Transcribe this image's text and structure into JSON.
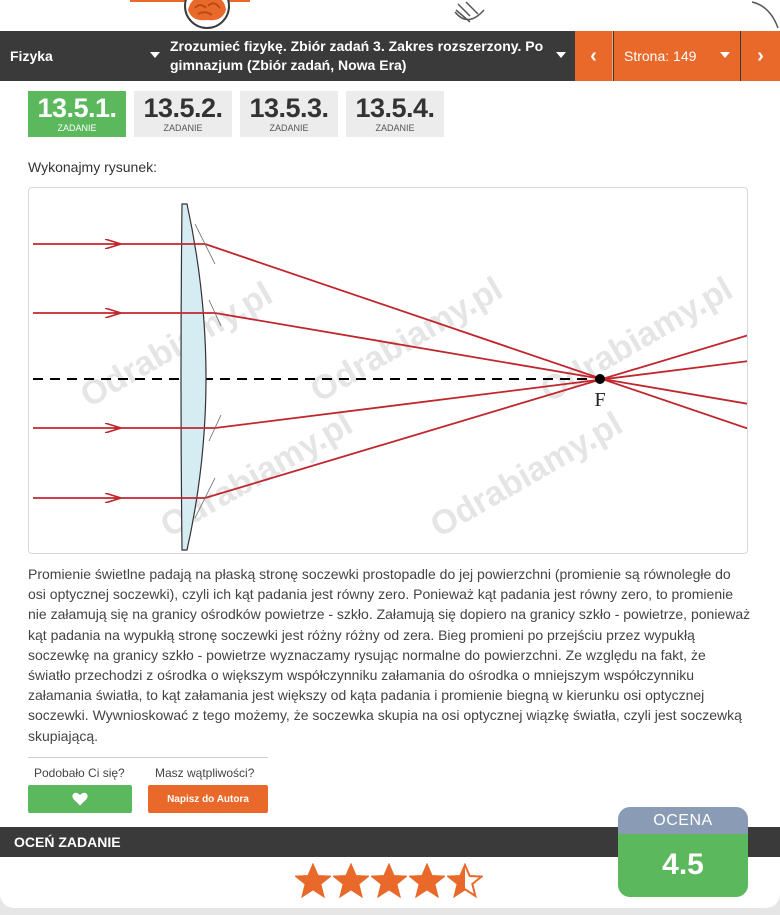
{
  "navbar": {
    "subject": "Fizyka",
    "book_title": "Zrozumieć fizykę. Zbiór zadań 3. Zakres rozszerzony. Po gimnazjum (Zbiór zadań, Nowa Era)",
    "prev_icon": "‹",
    "page_label": "Strona: 149",
    "next_icon": "›"
  },
  "tasks": [
    {
      "number": "13.5.1.",
      "label": "ZADANIE",
      "active": true
    },
    {
      "number": "13.5.2.",
      "label": "ZADANIE",
      "active": false
    },
    {
      "number": "13.5.3.",
      "label": "ZADANIE",
      "active": false
    },
    {
      "number": "13.5.4.",
      "label": "ZADANIE",
      "active": false
    }
  ],
  "solution": {
    "intro": "Wykonajmy rysunek:",
    "figure": {
      "focus_label": "F",
      "watermark": "Odrabiamy.pl",
      "colors": {
        "ray": "#c0272d",
        "lens_fill": "#d6ecf3",
        "axis": "#000000"
      }
    },
    "description": "Promienie świetlne padają na płaską stronę soczewki prostopadle do jej powierzchni (promienie są równoległe do osi optycznej soczewki), czyli ich kąt padania jest równy zero. Ponieważ kąt padania jest równy zero, to promienie nie załamują się na granicy ośrodków powietrze - szkło. Załamują się dopiero na granicy szkło - powietrze, ponieważ kąt padania na wypukłą stronę soczewki jest różny różny od zera. Bieg promieni po przejściu przez wypukłą soczewkę na granicy szkło - powietrze wyznaczamy rysując normalne do powierzchni. Ze względu na fakt, że światło przechodzi z ośrodka o większym współczynniku załamania do ośrodka o mniejszym współczynniku załamania światła, to kąt załamania jest większy od kąta padania i promienie biegną w kierunku osi optycznej soczewki. Wywnioskować z tego możemy, że soczewka skupia na osi optycznej wiązkę światła, czyli jest soczewką skupiającą."
  },
  "feedback": {
    "liked_question": "Podobało Ci się?",
    "doubt_question": "Masz wątpliwości?",
    "like_icon": "heart-icon",
    "author_button": "Napisz do Autora"
  },
  "rating": {
    "bar_label": "OCEŃ ZADANIE",
    "score_title": "OCENA",
    "score_value": "4.5",
    "stars_filled": 4.5,
    "stars_max": 5,
    "star_color": "#e8692a"
  }
}
